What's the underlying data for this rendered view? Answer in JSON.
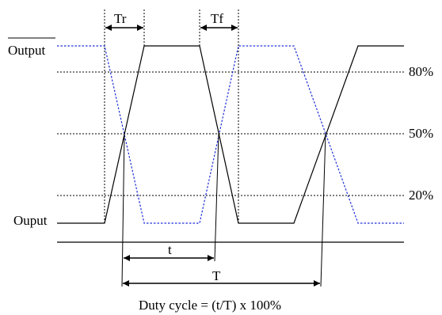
{
  "labels": {
    "output_bar": "Output",
    "output": "Ouput",
    "tr": "Tr",
    "tf": "Tf",
    "t": "t",
    "T": "T",
    "p80": "80%",
    "p50": "50%",
    "p20": "20%",
    "caption": "Duty cycle = (t/T) x 100%"
  },
  "colors": {
    "solid": "#000000",
    "dotted_signal": "#1f2fd6",
    "guide": "#000000"
  }
}
